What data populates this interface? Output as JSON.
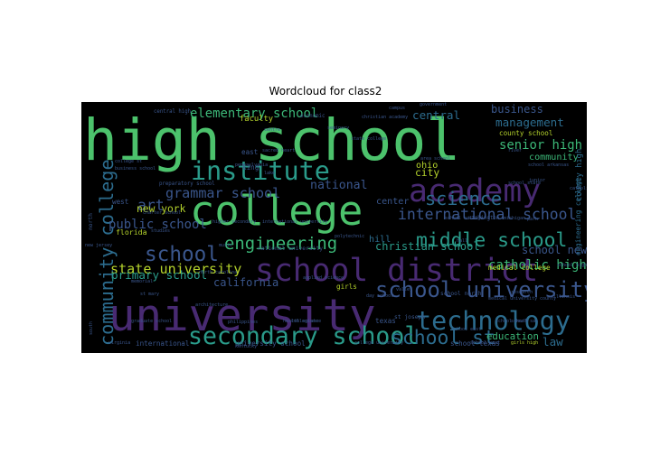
{
  "chart_data": {
    "type": "wordcloud",
    "title": "Wordcloud for class2",
    "background": "#000000",
    "words": [
      {
        "text": "high school",
        "weight": 1.0,
        "color": "#4cc26c",
        "vertical": false
      },
      {
        "text": "university",
        "weight": 0.78,
        "color": "#482a72",
        "vertical": false
      },
      {
        "text": "college",
        "weight": 0.72,
        "color": "#4cc26c",
        "vertical": false
      },
      {
        "text": "school district",
        "weight": 0.55,
        "color": "#482a72",
        "vertical": false
      },
      {
        "text": "academy",
        "weight": 0.55,
        "color": "#482a72",
        "vertical": false
      },
      {
        "text": "institute",
        "weight": 0.45,
        "color": "#2a9b8a",
        "vertical": false
      },
      {
        "text": "technology",
        "weight": 0.45,
        "color": "#2c6c8e",
        "vertical": false
      },
      {
        "text": "secondary school",
        "weight": 0.42,
        "color": "#2a9b8a",
        "vertical": false
      },
      {
        "text": "school university",
        "weight": 0.38,
        "color": "#3a568c",
        "vertical": false
      },
      {
        "text": "school",
        "weight": 0.36,
        "color": "#3a568c",
        "vertical": false
      },
      {
        "text": "middle school",
        "weight": 0.34,
        "color": "#2a9b8a",
        "vertical": false
      },
      {
        "text": "school st",
        "weight": 0.34,
        "color": "#2c6c8e",
        "vertical": false
      },
      {
        "text": "science",
        "weight": 0.32,
        "color": "#2c6c8e",
        "vertical": false
      },
      {
        "text": "engineering",
        "weight": 0.3,
        "color": "#3cb878",
        "vertical": false
      },
      {
        "text": "community college",
        "weight": 0.32,
        "color": "#2c6c8e",
        "vertical": true
      },
      {
        "text": "international school",
        "weight": 0.26,
        "color": "#3a568c",
        "vertical": false
      },
      {
        "text": "grammar school",
        "weight": 0.24,
        "color": "#3a568c",
        "vertical": false
      },
      {
        "text": "state university",
        "weight": 0.24,
        "color": "#b4d22c",
        "vertical": false
      },
      {
        "text": "elementary school",
        "weight": 0.22,
        "color": "#3cb878",
        "vertical": false
      },
      {
        "text": "senior high",
        "weight": 0.22,
        "color": "#3cb878",
        "vertical": false
      },
      {
        "text": "catholic high",
        "weight": 0.22,
        "color": "#3cb878",
        "vertical": false
      },
      {
        "text": "public school",
        "weight": 0.22,
        "color": "#3a568c",
        "vertical": false
      },
      {
        "text": "art",
        "weight": 0.26,
        "color": "#3a568c",
        "vertical": false
      },
      {
        "text": "central",
        "weight": 0.2,
        "color": "#2c6c8e",
        "vertical": false
      },
      {
        "text": "management",
        "weight": 0.2,
        "color": "#2c6c8e",
        "vertical": false
      },
      {
        "text": "business",
        "weight": 0.19,
        "color": "#3a568c",
        "vertical": false
      },
      {
        "text": "national",
        "weight": 0.21,
        "color": "#3a568c",
        "vertical": false
      },
      {
        "text": "christian school",
        "weight": 0.19,
        "color": "#2a9b8a",
        "vertical": false
      },
      {
        "text": "school new",
        "weight": 0.19,
        "color": "#3a568c",
        "vertical": false
      },
      {
        "text": "primary school",
        "weight": 0.2,
        "color": "#2a9b8a",
        "vertical": false
      },
      {
        "text": "california",
        "weight": 0.19,
        "color": "#3a568c",
        "vertical": false
      },
      {
        "text": "new york",
        "weight": 0.18,
        "color": "#b4d22c",
        "vertical": false
      },
      {
        "text": "city",
        "weight": 0.18,
        "color": "#b4d22c",
        "vertical": false
      },
      {
        "text": "ohio",
        "weight": 0.16,
        "color": "#b4d22c",
        "vertical": false
      },
      {
        "text": "community",
        "weight": 0.16,
        "color": "#3cb878",
        "vertical": false
      },
      {
        "text": "center",
        "weight": 0.16,
        "color": "#3a568c",
        "vertical": false
      },
      {
        "text": "hill",
        "weight": 0.16,
        "color": "#2c6c8e",
        "vertical": false
      },
      {
        "text": "law",
        "weight": 0.2,
        "color": "#2c6c8e",
        "vertical": false
      },
      {
        "text": "education",
        "weight": 0.17,
        "color": "#3cb878",
        "vertical": false
      },
      {
        "text": "medical college",
        "weight": 0.12,
        "color": "#b4d22c",
        "vertical": false
      },
      {
        "text": "county school",
        "weight": 0.12,
        "color": "#b4d22c",
        "vertical": false
      },
      {
        "text": "faculty",
        "weight": 0.14,
        "color": "#b4d22c",
        "vertical": false
      },
      {
        "text": "florida",
        "weight": 0.13,
        "color": "#b4d22c",
        "vertical": false
      },
      {
        "text": "texas",
        "weight": 0.12,
        "color": "#3a568c",
        "vertical": false
      },
      {
        "text": "girls",
        "weight": 0.12,
        "color": "#b4d22c",
        "vertical": false
      },
      {
        "text": "west",
        "weight": 0.12,
        "color": "#3a568c",
        "vertical": false
      },
      {
        "text": "east",
        "weight": 0.12,
        "color": "#3a568c",
        "vertical": false
      },
      {
        "text": "king",
        "weight": 0.12,
        "color": "#3a568c",
        "vertical": false
      },
      {
        "text": "international",
        "weight": 0.12,
        "color": "#3a568c",
        "vertical": false
      },
      {
        "text": "university school",
        "weight": 0.12,
        "color": "#3a568c",
        "vertical": false
      },
      {
        "text": "school texas",
        "weight": 0.12,
        "color": "#3a568c",
        "vertical": false
      },
      {
        "text": "county high",
        "weight": 0.14,
        "color": "#2c6c8e",
        "vertical": true
      },
      {
        "text": "engineering college",
        "weight": 0.12,
        "color": "#2c6c8e",
        "vertical": true
      },
      {
        "text": "national university",
        "weight": 0.1,
        "color": "#3a568c",
        "vertical": false
      },
      {
        "text": "school north",
        "weight": 0.1,
        "color": "#3a568c",
        "vertical": false
      },
      {
        "text": "st joseph",
        "weight": 0.1,
        "color": "#3a568c",
        "vertical": false
      },
      {
        "text": "central high",
        "weight": 0.09,
        "color": "#3a568c",
        "vertical": false
      },
      {
        "text": "economic",
        "weight": 0.09,
        "color": "#3a568c",
        "vertical": false
      },
      {
        "text": "christian academy",
        "weight": 0.08,
        "color": "#3a568c",
        "vertical": false
      },
      {
        "text": "campus",
        "weight": 0.08,
        "color": "#3a568c",
        "vertical": false
      },
      {
        "text": "preparatory school",
        "weight": 0.09,
        "color": "#3a568c",
        "vertical": false
      },
      {
        "text": "north",
        "weight": 0.1,
        "color": "#3a568c",
        "vertical": false
      },
      {
        "text": "south",
        "weight": 0.08,
        "color": "#3a568c",
        "vertical": false
      },
      {
        "text": "washington",
        "weight": 0.09,
        "color": "#3a568c",
        "vertical": false
      },
      {
        "text": "park",
        "weight": 0.08,
        "color": "#3a568c",
        "vertical": false
      },
      {
        "text": "graduate school",
        "weight": 0.08,
        "color": "#3a568c",
        "vertical": false
      },
      {
        "text": "health science",
        "weight": 0.08,
        "color": "#3a568c",
        "vertical": false
      },
      {
        "text": "applied science",
        "weight": 0.08,
        "color": "#3a568c",
        "vertical": false
      },
      {
        "text": "kentucky",
        "weight": 0.08,
        "color": "#3a568c",
        "vertical": false
      },
      {
        "text": "virginia",
        "weight": 0.08,
        "color": "#3a568c",
        "vertical": false
      },
      {
        "text": "pennsylvania",
        "weight": 0.08,
        "color": "#3a568c",
        "vertical": false
      },
      {
        "text": "sacred heart",
        "weight": 0.07,
        "color": "#3a568c",
        "vertical": false
      },
      {
        "text": "lake",
        "weight": 0.08,
        "color": "#3a568c",
        "vertical": false
      },
      {
        "text": "memorial",
        "weight": 0.08,
        "color": "#3a568c",
        "vertical": false
      },
      {
        "text": "studies",
        "weight": 0.08,
        "color": "#3a568c",
        "vertical": false
      },
      {
        "text": "music",
        "weight": 0.08,
        "color": "#3a568c",
        "vertical": false
      },
      {
        "text": "collegiate",
        "weight": 0.08,
        "color": "#3a568c",
        "vertical": false
      },
      {
        "text": "philippines",
        "weight": 0.07,
        "color": "#3a568c",
        "vertical": false
      },
      {
        "text": "school arkansas",
        "weight": 0.07,
        "color": "#3a568c",
        "vertical": false
      },
      {
        "text": "day school",
        "weight": 0.07,
        "color": "#3a568c",
        "vertical": false
      },
      {
        "text": "medical university",
        "weight": 0.07,
        "color": "#3a568c",
        "vertical": false
      },
      {
        "text": "research",
        "weight": 0.07,
        "color": "#3a568c",
        "vertical": false
      },
      {
        "text": "valley",
        "weight": 0.07,
        "color": "#3a568c",
        "vertical": false
      },
      {
        "text": "county",
        "weight": 0.08,
        "color": "#3a568c",
        "vertical": false
      },
      {
        "text": "college st",
        "weight": 0.07,
        "color": "#3a568c",
        "vertical": false
      },
      {
        "text": "business school",
        "weight": 0.07,
        "color": "#3a568c",
        "vertical": false
      },
      {
        "text": "st mary",
        "weight": 0.07,
        "color": "#3a568c",
        "vertical": false
      },
      {
        "text": "girls high",
        "weight": 0.06,
        "color": "#b4d22c",
        "vertical": false
      },
      {
        "text": "north carolina",
        "weight": 0.06,
        "color": "#3a568c",
        "vertical": false
      },
      {
        "text": "higher secondary",
        "weight": 0.06,
        "color": "#3a568c",
        "vertical": false
      },
      {
        "text": "international university",
        "weight": 0.06,
        "color": "#3a568c",
        "vertical": false
      },
      {
        "text": "area school",
        "weight": 0.06,
        "color": "#3a568c",
        "vertical": false
      },
      {
        "text": "state college",
        "weight": 0.06,
        "color": "#3a568c",
        "vertical": false
      },
      {
        "text": "school south",
        "weight": 0.06,
        "color": "#3a568c",
        "vertical": false
      },
      {
        "text": "school san",
        "weight": 0.06,
        "color": "#3a568c",
        "vertical": false
      },
      {
        "text": "illinois",
        "weight": 0.06,
        "color": "#3a568c",
        "vertical": false
      },
      {
        "text": "college university",
        "weight": 0.08,
        "color": "#3a568c",
        "vertical": false
      },
      {
        "text": "school west",
        "weight": 0.06,
        "color": "#3a568c",
        "vertical": false
      },
      {
        "text": "charter school",
        "weight": 0.06,
        "color": "#3a568c",
        "vertical": false
      },
      {
        "text": "centre",
        "weight": 0.07,
        "color": "#3a568c",
        "vertical": false
      },
      {
        "text": "polytechnic",
        "weight": 0.06,
        "color": "#3a568c",
        "vertical": false
      },
      {
        "text": "seminary",
        "weight": 0.06,
        "color": "#3a568c",
        "vertical": false
      },
      {
        "text": "government",
        "weight": 0.06,
        "color": "#3a568c",
        "vertical": false
      },
      {
        "text": "school state",
        "weight": 0.06,
        "color": "#3a568c",
        "vertical": false
      },
      {
        "text": "school east",
        "weight": 0.06,
        "color": "#3a568c",
        "vertical": false
      },
      {
        "text": "hall",
        "weight": 0.06,
        "color": "#3a568c",
        "vertical": false
      },
      {
        "text": "catholic",
        "weight": 0.06,
        "color": "#3a568c",
        "vertical": false
      },
      {
        "text": "architecture",
        "weight": 0.06,
        "color": "#3a568c",
        "vertical": false
      },
      {
        "text": "junior",
        "weight": 0.06,
        "color": "#3a568c",
        "vertical": false
      },
      {
        "text": "river",
        "weight": 0.06,
        "color": "#3a568c",
        "vertical": false
      },
      {
        "text": "michigan",
        "weight": 0.06,
        "color": "#3a568c",
        "vertical": false
      },
      {
        "text": "school high",
        "weight": 0.06,
        "color": "#3a568c",
        "vertical": false
      },
      {
        "text": "new jersey",
        "weight": 0.06,
        "color": "#3a568c",
        "vertical": false
      },
      {
        "text": "school college",
        "weight": 0.06,
        "color": "#3a568c",
        "vertical": false
      }
    ]
  }
}
